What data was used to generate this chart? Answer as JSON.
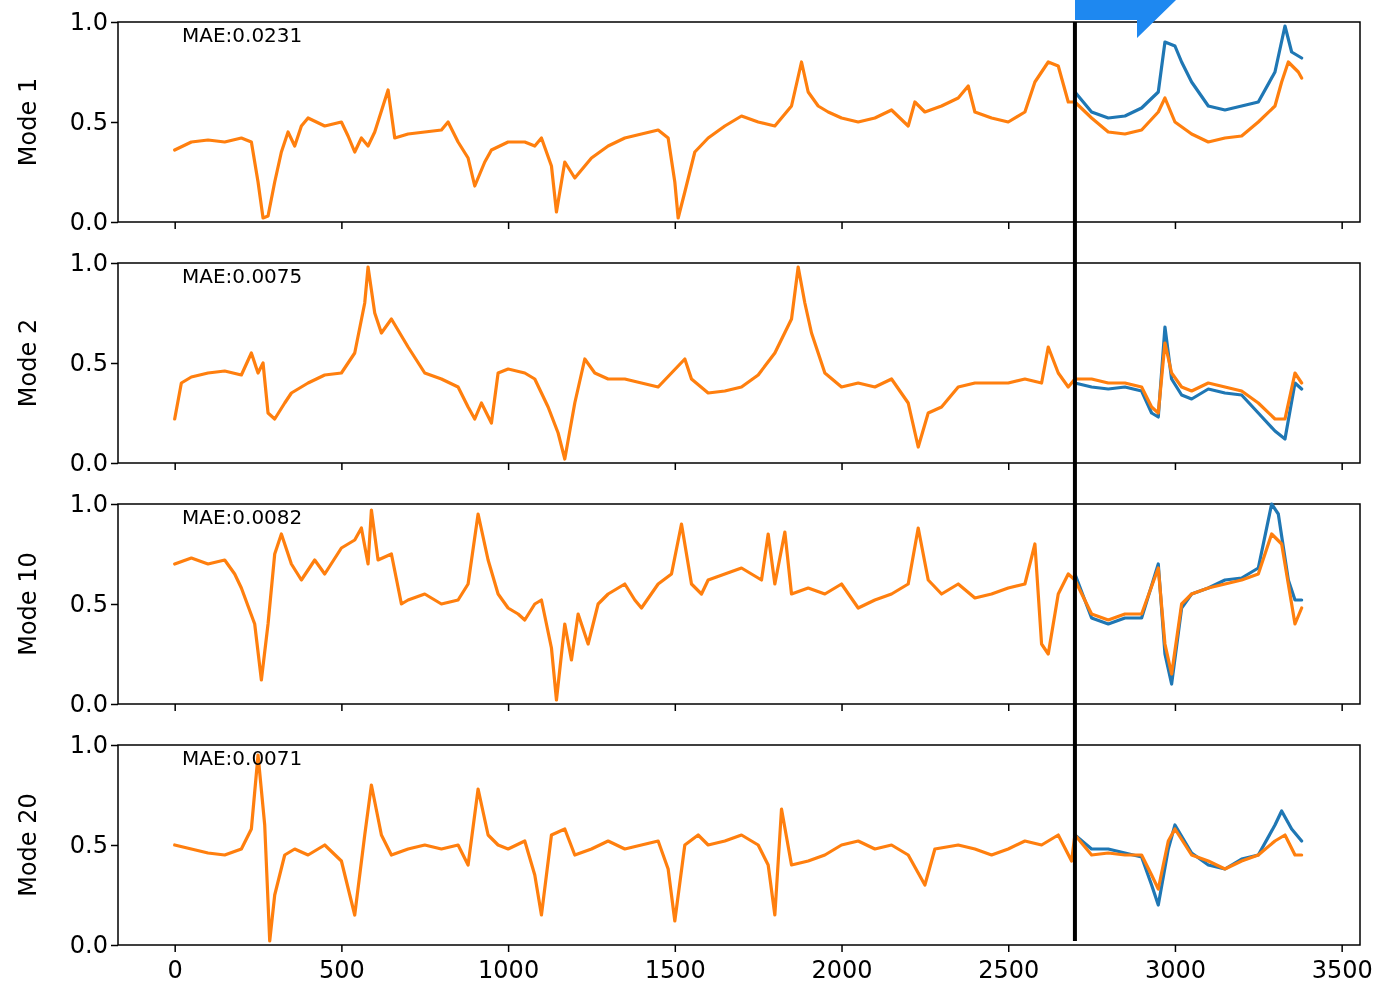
{
  "chart_data": [
    {
      "type": "line",
      "ylabel": "Mode 1",
      "annotations": [
        "MAE:0.0231"
      ],
      "xlim": [
        -170,
        3555
      ],
      "ylim": [
        0,
        1
      ],
      "xticks": [
        0,
        500,
        1000,
        1500,
        2000,
        2500,
        3000,
        3500
      ],
      "yticks": [
        {
          "value": 0,
          "label": "0.0"
        },
        {
          "value": 0.5,
          "label": "0.5"
        },
        {
          "value": 1,
          "label": "1.0"
        }
      ],
      "tick_labels": "y",
      "ref_lines": [
        {
          "axis": "x",
          "value": 2700,
          "color": "#000000"
        }
      ],
      "series": [
        {
          "color": "#1f77b4",
          "x": [
            2700,
            2750,
            2800,
            2850,
            2900,
            2950,
            2970,
            3000,
            3020,
            3050,
            3100,
            3150,
            3200,
            3250,
            3300,
            3330,
            3350,
            3380
          ],
          "values": [
            0.65,
            0.55,
            0.52,
            0.53,
            0.57,
            0.65,
            0.9,
            0.88,
            0.8,
            0.7,
            0.58,
            0.56,
            0.58,
            0.6,
            0.75,
            0.98,
            0.85,
            0.82
          ]
        },
        {
          "color": "#ff7f0e",
          "x": [
            0,
            50,
            100,
            150,
            200,
            230,
            250,
            265,
            280,
            300,
            320,
            340,
            360,
            380,
            400,
            450,
            500,
            520,
            540,
            560,
            580,
            600,
            640,
            660,
            700,
            750,
            800,
            820,
            850,
            880,
            900,
            930,
            950,
            1000,
            1050,
            1080,
            1100,
            1130,
            1145,
            1170,
            1200,
            1250,
            1300,
            1350,
            1400,
            1450,
            1480,
            1500,
            1510,
            1530,
            1560,
            1600,
            1650,
            1700,
            1750,
            1800,
            1850,
            1880,
            1900,
            1930,
            1960,
            2000,
            2050,
            2100,
            2150,
            2200,
            2220,
            2250,
            2300,
            2350,
            2380,
            2400,
            2450,
            2500,
            2550,
            2580,
            2620,
            2650,
            2680,
            2700,
            2750,
            2800,
            2850,
            2900,
            2950,
            2970,
            3000,
            3050,
            3100,
            3150,
            3200,
            3250,
            3300,
            3320,
            3340,
            3370,
            3380
          ],
          "values": [
            0.36,
            0.4,
            0.41,
            0.4,
            0.42,
            0.4,
            0.2,
            0.02,
            0.03,
            0.2,
            0.35,
            0.45,
            0.38,
            0.48,
            0.52,
            0.48,
            0.5,
            0.43,
            0.35,
            0.42,
            0.38,
            0.45,
            0.66,
            0.42,
            0.44,
            0.45,
            0.46,
            0.5,
            0.4,
            0.32,
            0.18,
            0.3,
            0.36,
            0.4,
            0.4,
            0.38,
            0.42,
            0.28,
            0.05,
            0.3,
            0.22,
            0.32,
            0.38,
            0.42,
            0.44,
            0.46,
            0.42,
            0.2,
            0.02,
            0.15,
            0.35,
            0.42,
            0.48,
            0.53,
            0.5,
            0.48,
            0.58,
            0.8,
            0.65,
            0.58,
            0.55,
            0.52,
            0.5,
            0.52,
            0.56,
            0.48,
            0.6,
            0.55,
            0.58,
            0.62,
            0.68,
            0.55,
            0.52,
            0.5,
            0.55,
            0.7,
            0.8,
            0.78,
            0.6,
            0.6,
            0.52,
            0.45,
            0.44,
            0.46,
            0.55,
            0.62,
            0.5,
            0.44,
            0.4,
            0.42,
            0.43,
            0.5,
            0.58,
            0.7,
            0.8,
            0.75,
            0.72
          ]
        }
      ]
    },
    {
      "type": "line",
      "ylabel": "Mode 2",
      "annotations": [
        "MAE:0.0075"
      ],
      "xlim": [
        -170,
        3555
      ],
      "ylim": [
        0,
        1
      ],
      "xticks": [
        0,
        500,
        1000,
        1500,
        2000,
        2500,
        3000,
        3500
      ],
      "yticks": [
        {
          "value": 0,
          "label": "0.0"
        },
        {
          "value": 0.5,
          "label": "0.5"
        },
        {
          "value": 1,
          "label": "1.0"
        }
      ],
      "tick_labels": "y",
      "ref_lines": [
        {
          "axis": "x",
          "value": 2700,
          "color": "#000000"
        }
      ],
      "series": [
        {
          "color": "#1f77b4",
          "x": [
            2700,
            2750,
            2800,
            2850,
            2900,
            2930,
            2950,
            2970,
            2990,
            3020,
            3050,
            3100,
            3150,
            3200,
            3250,
            3300,
            3330,
            3360,
            3380
          ],
          "values": [
            0.4,
            0.38,
            0.37,
            0.38,
            0.36,
            0.25,
            0.23,
            0.68,
            0.42,
            0.34,
            0.32,
            0.37,
            0.35,
            0.34,
            0.25,
            0.16,
            0.12,
            0.4,
            0.37
          ]
        },
        {
          "color": "#ff7f0e",
          "x": [
            0,
            20,
            50,
            100,
            150,
            200,
            230,
            250,
            265,
            280,
            300,
            330,
            350,
            400,
            450,
            500,
            540,
            570,
            580,
            600,
            620,
            650,
            700,
            750,
            800,
            850,
            880,
            900,
            920,
            950,
            970,
            1000,
            1050,
            1080,
            1120,
            1150,
            1170,
            1200,
            1230,
            1260,
            1300,
            1350,
            1400,
            1450,
            1530,
            1550,
            1600,
            1650,
            1700,
            1750,
            1800,
            1850,
            1870,
            1890,
            1910,
            1950,
            2000,
            2050,
            2100,
            2150,
            2200,
            2230,
            2260,
            2300,
            2350,
            2400,
            2500,
            2550,
            2600,
            2620,
            2650,
            2680,
            2700,
            2750,
            2800,
            2850,
            2900,
            2930,
            2950,
            2970,
            2990,
            3020,
            3050,
            3100,
            3150,
            3200,
            3250,
            3300,
            3330,
            3360,
            3380
          ],
          "values": [
            0.22,
            0.4,
            0.43,
            0.45,
            0.46,
            0.44,
            0.55,
            0.45,
            0.5,
            0.25,
            0.22,
            0.3,
            0.35,
            0.4,
            0.44,
            0.45,
            0.55,
            0.8,
            0.98,
            0.75,
            0.65,
            0.72,
            0.58,
            0.45,
            0.42,
            0.38,
            0.28,
            0.22,
            0.3,
            0.2,
            0.45,
            0.47,
            0.45,
            0.42,
            0.28,
            0.15,
            0.02,
            0.3,
            0.52,
            0.45,
            0.42,
            0.42,
            0.4,
            0.38,
            0.52,
            0.42,
            0.35,
            0.36,
            0.38,
            0.44,
            0.55,
            0.72,
            0.98,
            0.8,
            0.65,
            0.45,
            0.38,
            0.4,
            0.38,
            0.42,
            0.3,
            0.08,
            0.25,
            0.28,
            0.38,
            0.4,
            0.4,
            0.42,
            0.4,
            0.58,
            0.45,
            0.38,
            0.42,
            0.42,
            0.4,
            0.4,
            0.38,
            0.28,
            0.25,
            0.6,
            0.45,
            0.38,
            0.36,
            0.4,
            0.38,
            0.36,
            0.3,
            0.22,
            0.22,
            0.45,
            0.4
          ]
        }
      ]
    },
    {
      "type": "line",
      "ylabel": "Mode 10",
      "annotations": [
        "MAE:0.0082"
      ],
      "xlim": [
        -170,
        3555
      ],
      "ylim": [
        0,
        1
      ],
      "xticks": [
        0,
        500,
        1000,
        1500,
        2000,
        2500,
        3000,
        3500
      ],
      "yticks": [
        {
          "value": 0,
          "label": "0.0"
        },
        {
          "value": 0.5,
          "label": "0.5"
        },
        {
          "value": 1,
          "label": "1.0"
        }
      ],
      "tick_labels": "y",
      "ref_lines": [
        {
          "axis": "x",
          "value": 2700,
          "color": "#000000"
        }
      ],
      "series": [
        {
          "color": "#1f77b4",
          "x": [
            2700,
            2750,
            2800,
            2850,
            2900,
            2950,
            2970,
            2990,
            3020,
            3050,
            3100,
            3150,
            3200,
            3250,
            3290,
            3310,
            3340,
            3360,
            3380
          ],
          "values": [
            0.65,
            0.43,
            0.4,
            0.43,
            0.43,
            0.7,
            0.25,
            0.1,
            0.48,
            0.55,
            0.58,
            0.62,
            0.63,
            0.68,
            1.0,
            0.95,
            0.62,
            0.52,
            0.52
          ]
        },
        {
          "color": "#ff7f0e",
          "x": [
            0,
            50,
            100,
            150,
            180,
            200,
            240,
            260,
            280,
            300,
            320,
            350,
            380,
            420,
            450,
            500,
            540,
            560,
            580,
            590,
            610,
            650,
            680,
            700,
            750,
            800,
            850,
            880,
            910,
            940,
            970,
            1000,
            1030,
            1050,
            1080,
            1100,
            1130,
            1145,
            1170,
            1190,
            1210,
            1240,
            1270,
            1300,
            1350,
            1380,
            1400,
            1450,
            1490,
            1520,
            1550,
            1580,
            1600,
            1650,
            1700,
            1760,
            1780,
            1800,
            1830,
            1850,
            1900,
            1950,
            2000,
            2050,
            2100,
            2150,
            2200,
            2230,
            2260,
            2300,
            2350,
            2400,
            2450,
            2500,
            2550,
            2580,
            2600,
            2620,
            2650,
            2680,
            2700,
            2750,
            2800,
            2850,
            2900,
            2950,
            2970,
            2990,
            3020,
            3050,
            3100,
            3150,
            3200,
            3250,
            3290,
            3320,
            3340,
            3360,
            3380
          ],
          "values": [
            0.7,
            0.73,
            0.7,
            0.72,
            0.65,
            0.58,
            0.4,
            0.12,
            0.4,
            0.75,
            0.85,
            0.7,
            0.62,
            0.72,
            0.65,
            0.78,
            0.82,
            0.88,
            0.7,
            0.97,
            0.72,
            0.75,
            0.5,
            0.52,
            0.55,
            0.5,
            0.52,
            0.6,
            0.95,
            0.72,
            0.55,
            0.48,
            0.45,
            0.42,
            0.5,
            0.52,
            0.28,
            0.02,
            0.4,
            0.22,
            0.45,
            0.3,
            0.5,
            0.55,
            0.6,
            0.52,
            0.48,
            0.6,
            0.65,
            0.9,
            0.6,
            0.55,
            0.62,
            0.65,
            0.68,
            0.62,
            0.85,
            0.6,
            0.86,
            0.55,
            0.58,
            0.55,
            0.6,
            0.48,
            0.52,
            0.55,
            0.6,
            0.88,
            0.62,
            0.55,
            0.6,
            0.53,
            0.55,
            0.58,
            0.6,
            0.8,
            0.3,
            0.25,
            0.55,
            0.65,
            0.62,
            0.45,
            0.42,
            0.45,
            0.45,
            0.68,
            0.3,
            0.15,
            0.5,
            0.55,
            0.58,
            0.6,
            0.62,
            0.65,
            0.85,
            0.8,
            0.6,
            0.4,
            0.48
          ]
        }
      ]
    },
    {
      "type": "line",
      "ylabel": "Mode 20",
      "annotations": [
        "MAE:0.0071"
      ],
      "xlim": [
        -170,
        3555
      ],
      "ylim": [
        0,
        1
      ],
      "xticks": [
        0,
        500,
        1000,
        1500,
        2000,
        2500,
        3000,
        3500
      ],
      "yticks": [
        {
          "value": 0,
          "label": "0.0"
        },
        {
          "value": 0.5,
          "label": "0.5"
        },
        {
          "value": 1,
          "label": "1.0"
        }
      ],
      "ref_lines": [
        {
          "axis": "x",
          "value": 2700,
          "color": "#000000"
        }
      ],
      "series": [
        {
          "color": "#1f77b4",
          "x": [
            2700,
            2750,
            2800,
            2850,
            2900,
            2930,
            2950,
            2980,
            3000,
            3050,
            3100,
            3150,
            3200,
            3250,
            3300,
            3320,
            3350,
            3380
          ],
          "values": [
            0.55,
            0.48,
            0.48,
            0.46,
            0.44,
            0.3,
            0.2,
            0.48,
            0.6,
            0.46,
            0.4,
            0.38,
            0.43,
            0.45,
            0.6,
            0.67,
            0.58,
            0.52
          ]
        },
        {
          "color": "#ff7f0e",
          "x": [
            0,
            50,
            100,
            150,
            200,
            230,
            250,
            270,
            285,
            300,
            330,
            360,
            400,
            450,
            500,
            540,
            570,
            590,
            620,
            650,
            700,
            750,
            800,
            850,
            880,
            910,
            940,
            970,
            1000,
            1050,
            1080,
            1100,
            1130,
            1170,
            1200,
            1250,
            1300,
            1350,
            1400,
            1450,
            1480,
            1500,
            1530,
            1570,
            1600,
            1650,
            1700,
            1750,
            1780,
            1800,
            1820,
            1850,
            1900,
            1950,
            2000,
            2050,
            2100,
            2150,
            2200,
            2250,
            2280,
            2350,
            2400,
            2450,
            2500,
            2550,
            2600,
            2650,
            2690,
            2700,
            2750,
            2800,
            2850,
            2900,
            2930,
            2950,
            2980,
            3000,
            3050,
            3100,
            3150,
            3200,
            3250,
            3300,
            3330,
            3360,
            3380
          ],
          "values": [
            0.5,
            0.48,
            0.46,
            0.45,
            0.48,
            0.58,
            0.95,
            0.6,
            0.02,
            0.25,
            0.45,
            0.48,
            0.45,
            0.5,
            0.42,
            0.15,
            0.55,
            0.8,
            0.55,
            0.45,
            0.48,
            0.5,
            0.48,
            0.5,
            0.4,
            0.78,
            0.55,
            0.5,
            0.48,
            0.52,
            0.35,
            0.15,
            0.55,
            0.58,
            0.45,
            0.48,
            0.52,
            0.48,
            0.5,
            0.52,
            0.38,
            0.12,
            0.5,
            0.55,
            0.5,
            0.52,
            0.55,
            0.5,
            0.4,
            0.15,
            0.68,
            0.4,
            0.42,
            0.45,
            0.5,
            0.52,
            0.48,
            0.5,
            0.45,
            0.3,
            0.48,
            0.5,
            0.48,
            0.45,
            0.48,
            0.52,
            0.5,
            0.55,
            0.42,
            0.55,
            0.45,
            0.46,
            0.45,
            0.45,
            0.35,
            0.28,
            0.52,
            0.58,
            0.45,
            0.42,
            0.38,
            0.42,
            0.45,
            0.52,
            0.55,
            0.45,
            0.45
          ]
        }
      ]
    }
  ]
}
